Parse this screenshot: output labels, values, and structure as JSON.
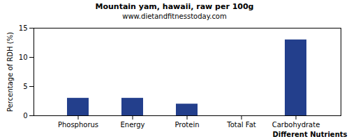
{
  "chart_data": {
    "type": "bar",
    "title": "Mountain yam, hawaii, raw per 100g",
    "subtitle": "www.dietandfitnesstoday.com",
    "x_label": "Different Nutrients",
    "y_label": "Percentage of RDH (%)",
    "categories": [
      "Phosphorus",
      "Energy",
      "Protein",
      "Total Fat",
      "Carbohydrate"
    ],
    "values": [
      3,
      3,
      2,
      0,
      13
    ],
    "color": "#233f8c",
    "ylim": [
      0,
      15
    ],
    "yticks": [
      0,
      5,
      10,
      15
    ],
    "grid": false
  }
}
